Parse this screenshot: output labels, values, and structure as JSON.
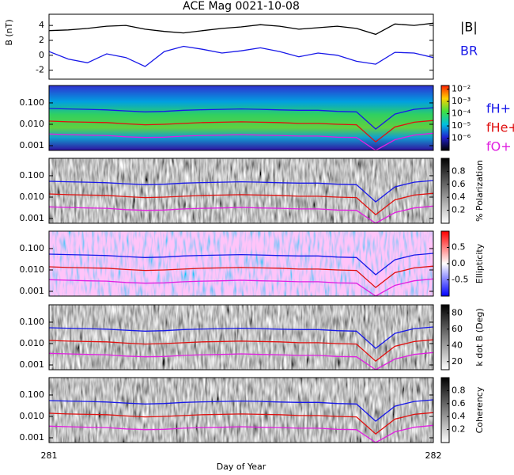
{
  "chart_data": [
    {
      "type": "line",
      "title": "ACE Mag 0021-10-08",
      "ylabel": "B (nT)",
      "x": [
        281,
        281.05,
        281.1,
        281.15,
        281.2,
        281.25,
        281.3,
        281.35,
        281.4,
        281.45,
        281.5,
        281.55,
        281.6,
        281.65,
        281.7,
        281.75,
        281.8,
        281.85,
        281.9,
        281.95,
        282
      ],
      "xlim": [
        281,
        282
      ],
      "ylim": [
        -3.2,
        5.5
      ],
      "yticks": [
        4,
        2,
        0,
        -2
      ],
      "series": [
        {
          "name": "|B|",
          "color": "#000000",
          "values": [
            3.3,
            3.4,
            3.6,
            3.9,
            4.0,
            3.5,
            3.2,
            3.0,
            3.3,
            3.6,
            3.8,
            4.1,
            3.9,
            3.5,
            3.7,
            3.9,
            3.6,
            2.8,
            4.2,
            4.0,
            4.3
          ]
        },
        {
          "name": "BR",
          "color": "#1818e8",
          "values": [
            0.5,
            -0.5,
            -1.0,
            0.2,
            -0.3,
            -1.5,
            0.5,
            1.2,
            0.8,
            0.3,
            0.6,
            1.0,
            0.5,
            -0.2,
            0.3,
            0.0,
            -0.8,
            -1.2,
            0.4,
            0.3,
            -0.3
          ]
        }
      ]
    },
    {
      "type": "spectrogram",
      "colormap": "rainbow",
      "colorbar_log": true,
      "clim": [
        1e-07,
        0.02
      ],
      "cticks": [
        {
          "value": 0.01,
          "label": "10⁻²"
        },
        {
          "value": 0.001,
          "label": "10⁻³"
        },
        {
          "value": 0.0001,
          "label": "10⁻⁴"
        },
        {
          "value": 1e-05,
          "label": "10⁻⁵"
        },
        {
          "value": 1e-06,
          "label": "10⁻⁶"
        }
      ],
      "log_y": true,
      "ylim": [
        0.0006,
        0.65
      ],
      "yticks": [
        {
          "value": 0.1,
          "label": "0.100"
        },
        {
          "value": 0.01,
          "label": "0.010"
        },
        {
          "value": 0.001,
          "label": "0.001"
        }
      ],
      "x": [
        281,
        281.05,
        281.1,
        281.15,
        281.2,
        281.25,
        281.3,
        281.35,
        281.4,
        281.45,
        281.5,
        281.55,
        281.6,
        281.65,
        281.7,
        281.75,
        281.8,
        281.85,
        281.9,
        281.95,
        282
      ],
      "xlim": [
        281,
        282
      ],
      "series": [
        {
          "name": "fH+",
          "color": "#1818e8",
          "values": [
            0.055,
            0.052,
            0.05,
            0.047,
            0.042,
            0.038,
            0.04,
            0.045,
            0.048,
            0.05,
            0.052,
            0.05,
            0.047,
            0.045,
            0.045,
            0.04,
            0.038,
            0.006,
            0.03,
            0.05,
            0.06
          ]
        },
        {
          "name": "fHe+",
          "color": "#e01010",
          "values": [
            0.014,
            0.013,
            0.0125,
            0.012,
            0.0105,
            0.0095,
            0.01,
            0.011,
            0.012,
            0.0125,
            0.013,
            0.0125,
            0.012,
            0.011,
            0.011,
            0.01,
            0.0095,
            0.0015,
            0.0075,
            0.0125,
            0.015
          ]
        },
        {
          "name": "fO+",
          "color": "#e020e0",
          "values": [
            0.0035,
            0.0033,
            0.0031,
            0.003,
            0.0026,
            0.0024,
            0.0025,
            0.0028,
            0.003,
            0.0031,
            0.0033,
            0.0031,
            0.003,
            0.0028,
            0.0028,
            0.0025,
            0.0024,
            0.0006,
            0.0019,
            0.0031,
            0.0038
          ]
        }
      ]
    },
    {
      "type": "spectrogram",
      "colormap": "gray",
      "colorbar_label": "% Polarization",
      "clim": [
        0,
        1
      ],
      "cticks": [
        0.8,
        0.6,
        0.4,
        0.2
      ],
      "log_y": true,
      "ylim": [
        0.0006,
        0.65
      ],
      "yticks": [
        {
          "value": 0.1,
          "label": "0.100"
        },
        {
          "value": 0.01,
          "label": "0.010"
        },
        {
          "value": 0.001,
          "label": "0.001"
        }
      ],
      "x": [
        281,
        281.05,
        281.1,
        281.15,
        281.2,
        281.25,
        281.3,
        281.35,
        281.4,
        281.45,
        281.5,
        281.55,
        281.6,
        281.65,
        281.7,
        281.75,
        281.8,
        281.85,
        281.9,
        281.95,
        282
      ],
      "xlim": [
        281,
        282
      ],
      "series": [
        {
          "color": "#1818e8",
          "values": [
            0.055,
            0.052,
            0.05,
            0.047,
            0.042,
            0.038,
            0.04,
            0.045,
            0.048,
            0.05,
            0.052,
            0.05,
            0.047,
            0.045,
            0.045,
            0.04,
            0.038,
            0.006,
            0.03,
            0.05,
            0.06
          ]
        },
        {
          "color": "#e01010",
          "values": [
            0.014,
            0.013,
            0.0125,
            0.012,
            0.0105,
            0.0095,
            0.01,
            0.011,
            0.012,
            0.0125,
            0.013,
            0.0125,
            0.012,
            0.011,
            0.011,
            0.01,
            0.0095,
            0.0015,
            0.0075,
            0.0125,
            0.015
          ]
        },
        {
          "color": "#e020e0",
          "values": [
            0.0035,
            0.0033,
            0.0031,
            0.003,
            0.0026,
            0.0024,
            0.0025,
            0.0028,
            0.003,
            0.0031,
            0.0033,
            0.0031,
            0.003,
            0.0028,
            0.0028,
            0.0025,
            0.0024,
            0.0006,
            0.0019,
            0.0031,
            0.0038
          ]
        }
      ]
    },
    {
      "type": "spectrogram",
      "colormap": "redblue",
      "colorbar_label": "Ellipticity",
      "clim": [
        -1,
        1
      ],
      "cticks": [
        0.5,
        {
          "value": 0,
          "label": "0.0"
        },
        -0.5
      ],
      "log_y": true,
      "ylim": [
        0.0006,
        0.65
      ],
      "yticks": [
        {
          "value": 0.1,
          "label": "0.100"
        },
        {
          "value": 0.01,
          "label": "0.010"
        },
        {
          "value": 0.001,
          "label": "0.001"
        }
      ],
      "x": [
        281,
        281.05,
        281.1,
        281.15,
        281.2,
        281.25,
        281.3,
        281.35,
        281.4,
        281.45,
        281.5,
        281.55,
        281.6,
        281.65,
        281.7,
        281.75,
        281.8,
        281.85,
        281.9,
        281.95,
        282
      ],
      "xlim": [
        281,
        282
      ],
      "series": [
        {
          "color": "#1818e8",
          "values": [
            0.055,
            0.052,
            0.05,
            0.047,
            0.042,
            0.038,
            0.04,
            0.045,
            0.048,
            0.05,
            0.052,
            0.05,
            0.047,
            0.045,
            0.045,
            0.04,
            0.038,
            0.006,
            0.03,
            0.05,
            0.06
          ]
        },
        {
          "color": "#e01010",
          "values": [
            0.014,
            0.013,
            0.0125,
            0.012,
            0.0105,
            0.0095,
            0.01,
            0.011,
            0.012,
            0.0125,
            0.013,
            0.0125,
            0.012,
            0.011,
            0.011,
            0.01,
            0.0095,
            0.0015,
            0.0075,
            0.0125,
            0.015
          ]
        },
        {
          "color": "#e020e0",
          "values": [
            0.0035,
            0.0033,
            0.0031,
            0.003,
            0.0026,
            0.0024,
            0.0025,
            0.0028,
            0.003,
            0.0031,
            0.0033,
            0.0031,
            0.003,
            0.0028,
            0.0028,
            0.0025,
            0.0024,
            0.0006,
            0.0019,
            0.0031,
            0.0038
          ]
        }
      ]
    },
    {
      "type": "spectrogram",
      "colormap": "gray",
      "colorbar_label": "k dot B (Deg)",
      "clim": [
        10,
        90
      ],
      "cticks": [
        80,
        60,
        40,
        20
      ],
      "log_y": true,
      "ylim": [
        0.0006,
        0.65
      ],
      "yticks": [
        {
          "value": 0.1,
          "label": "0.100"
        },
        {
          "value": 0.01,
          "label": "0.010"
        },
        {
          "value": 0.001,
          "label": "0.001"
        }
      ],
      "x": [
        281,
        281.05,
        281.1,
        281.15,
        281.2,
        281.25,
        281.3,
        281.35,
        281.4,
        281.45,
        281.5,
        281.55,
        281.6,
        281.65,
        281.7,
        281.75,
        281.8,
        281.85,
        281.9,
        281.95,
        282
      ],
      "xlim": [
        281,
        282
      ],
      "series": [
        {
          "color": "#1818e8",
          "values": [
            0.055,
            0.052,
            0.05,
            0.047,
            0.042,
            0.038,
            0.04,
            0.045,
            0.048,
            0.05,
            0.052,
            0.05,
            0.047,
            0.045,
            0.045,
            0.04,
            0.038,
            0.006,
            0.03,
            0.05,
            0.06
          ]
        },
        {
          "color": "#e01010",
          "values": [
            0.014,
            0.013,
            0.0125,
            0.012,
            0.0105,
            0.0095,
            0.01,
            0.011,
            0.012,
            0.0125,
            0.013,
            0.0125,
            0.012,
            0.011,
            0.011,
            0.01,
            0.0095,
            0.0015,
            0.0075,
            0.0125,
            0.015
          ]
        },
        {
          "color": "#e020e0",
          "values": [
            0.0035,
            0.0033,
            0.0031,
            0.003,
            0.0026,
            0.0024,
            0.0025,
            0.0028,
            0.003,
            0.0031,
            0.0033,
            0.0031,
            0.003,
            0.0028,
            0.0028,
            0.0025,
            0.0024,
            0.0006,
            0.0019,
            0.0031,
            0.0038
          ]
        }
      ]
    },
    {
      "type": "spectrogram",
      "colormap": "gray",
      "colorbar_label": "Coherency",
      "clim": [
        0,
        1
      ],
      "cticks": [
        0.8,
        0.6,
        0.4,
        0.2
      ],
      "log_y": true,
      "ylim": [
        0.0006,
        0.65
      ],
      "yticks": [
        {
          "value": 0.1,
          "label": "0.100"
        },
        {
          "value": 0.01,
          "label": "0.010"
        },
        {
          "value": 0.001,
          "label": "0.001"
        }
      ],
      "x": [
        281,
        281.05,
        281.1,
        281.15,
        281.2,
        281.25,
        281.3,
        281.35,
        281.4,
        281.45,
        281.5,
        281.55,
        281.6,
        281.65,
        281.7,
        281.75,
        281.8,
        281.85,
        281.9,
        281.95,
        282
      ],
      "xlim": [
        281,
        282
      ],
      "xticks": [
        281,
        282
      ],
      "xlabel": "Day of Year",
      "series": [
        {
          "color": "#1818e8",
          "values": [
            0.055,
            0.052,
            0.05,
            0.047,
            0.042,
            0.038,
            0.04,
            0.045,
            0.048,
            0.05,
            0.052,
            0.05,
            0.047,
            0.045,
            0.045,
            0.04,
            0.038,
            0.006,
            0.03,
            0.05,
            0.06
          ]
        },
        {
          "color": "#e01010",
          "values": [
            0.014,
            0.013,
            0.0125,
            0.012,
            0.0105,
            0.0095,
            0.01,
            0.011,
            0.012,
            0.0125,
            0.013,
            0.0125,
            0.012,
            0.011,
            0.011,
            0.01,
            0.0095,
            0.0015,
            0.0075,
            0.0125,
            0.015
          ]
        },
        {
          "color": "#e020e0",
          "values": [
            0.0035,
            0.0033,
            0.0031,
            0.003,
            0.0026,
            0.0024,
            0.0025,
            0.0028,
            0.003,
            0.0031,
            0.0033,
            0.0031,
            0.003,
            0.0028,
            0.0028,
            0.0025,
            0.0024,
            0.0006,
            0.0019,
            0.0031,
            0.0038
          ]
        }
      ]
    }
  ]
}
